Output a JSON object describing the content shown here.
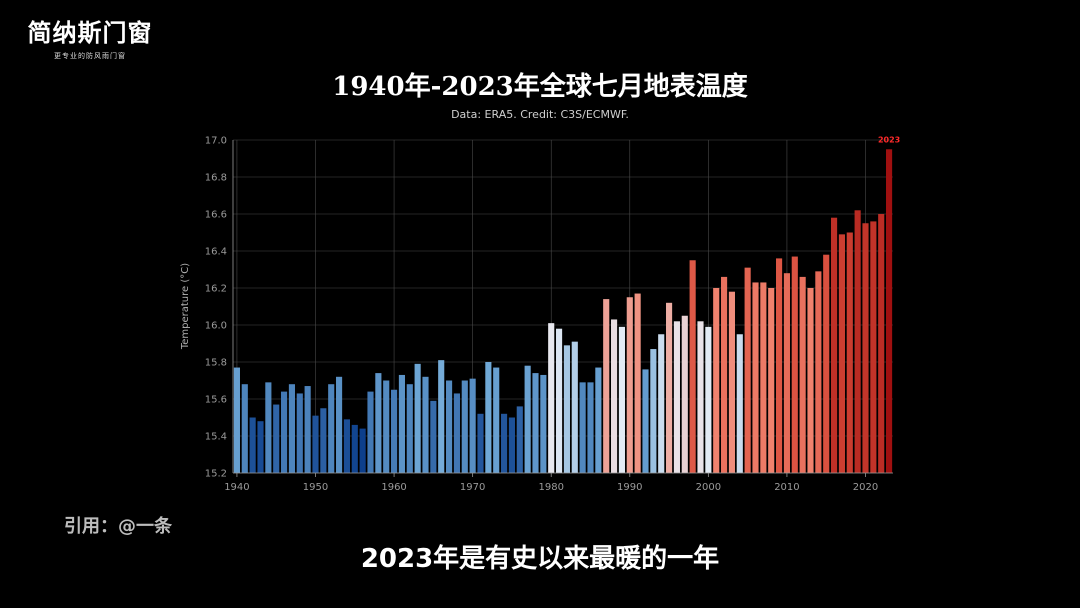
{
  "logo": {
    "name": "简纳斯门窗",
    "slogan": "更专业的防风雨门窗"
  },
  "citation": "引用：@一条",
  "caption": "2023年是有史以来最暖的一年",
  "colors": {
    "cold": "#0d3f8c",
    "mid": "#e8edf6",
    "warm": "#d84b3a",
    "hot": "#a01010",
    "highlight_label": "#ff2a2a",
    "grid": "#4a4a4a",
    "axis": "#9a9a9a"
  },
  "chart_data": {
    "type": "bar",
    "title": "1940年-2023年全球七月地表温度",
    "subtitle": "Data: ERA5. Credit: C3S/ECMWF.",
    "xlabel": "",
    "ylabel": "Temperature (°C)",
    "ylim": [
      15.2,
      17.0
    ],
    "xlim": [
      1939.5,
      2023.5
    ],
    "grid": true,
    "yticks": [
      "15.2",
      "15.4",
      "15.6",
      "15.8",
      "16.0",
      "16.2",
      "16.4",
      "16.6",
      "16.8",
      "17.0"
    ],
    "xticks": [
      "1940",
      "1950",
      "1960",
      "1970",
      "1980",
      "1990",
      "2000",
      "2010",
      "2020"
    ],
    "highlight": {
      "year": 2023,
      "label": "2023"
    },
    "x": [
      1940,
      1941,
      1942,
      1943,
      1944,
      1945,
      1946,
      1947,
      1948,
      1949,
      1950,
      1951,
      1952,
      1953,
      1954,
      1955,
      1956,
      1957,
      1958,
      1959,
      1960,
      1961,
      1962,
      1963,
      1964,
      1965,
      1966,
      1967,
      1968,
      1969,
      1970,
      1971,
      1972,
      1973,
      1974,
      1975,
      1976,
      1977,
      1978,
      1979,
      1980,
      1981,
      1982,
      1983,
      1984,
      1985,
      1986,
      1987,
      1988,
      1989,
      1990,
      1991,
      1992,
      1993,
      1994,
      1995,
      1996,
      1997,
      1998,
      1999,
      2000,
      2001,
      2002,
      2003,
      2004,
      2005,
      2006,
      2007,
      2008,
      2009,
      2010,
      2011,
      2012,
      2013,
      2014,
      2015,
      2016,
      2017,
      2018,
      2019,
      2020,
      2021,
      2022,
      2023
    ],
    "values": [
      15.77,
      15.68,
      15.5,
      15.48,
      15.69,
      15.57,
      15.64,
      15.68,
      15.63,
      15.67,
      15.51,
      15.55,
      15.68,
      15.72,
      15.49,
      15.46,
      15.44,
      15.64,
      15.74,
      15.7,
      15.65,
      15.73,
      15.68,
      15.79,
      15.72,
      15.59,
      15.81,
      15.7,
      15.63,
      15.7,
      15.71,
      15.52,
      15.8,
      15.77,
      15.52,
      15.5,
      15.56,
      15.78,
      15.74,
      15.73,
      16.01,
      15.98,
      15.89,
      15.91,
      15.69,
      15.69,
      15.77,
      16.14,
      16.03,
      15.99,
      16.15,
      16.17,
      15.76,
      15.87,
      15.95,
      16.12,
      16.02,
      16.05,
      16.35,
      16.02,
      15.99,
      16.2,
      16.26,
      16.18,
      15.95,
      16.31,
      16.23,
      16.23,
      16.2,
      16.36,
      16.28,
      16.37,
      16.26,
      16.2,
      16.29,
      16.38,
      16.58,
      16.49,
      16.5,
      16.62,
      16.55,
      16.56,
      16.6,
      16.95
    ]
  }
}
